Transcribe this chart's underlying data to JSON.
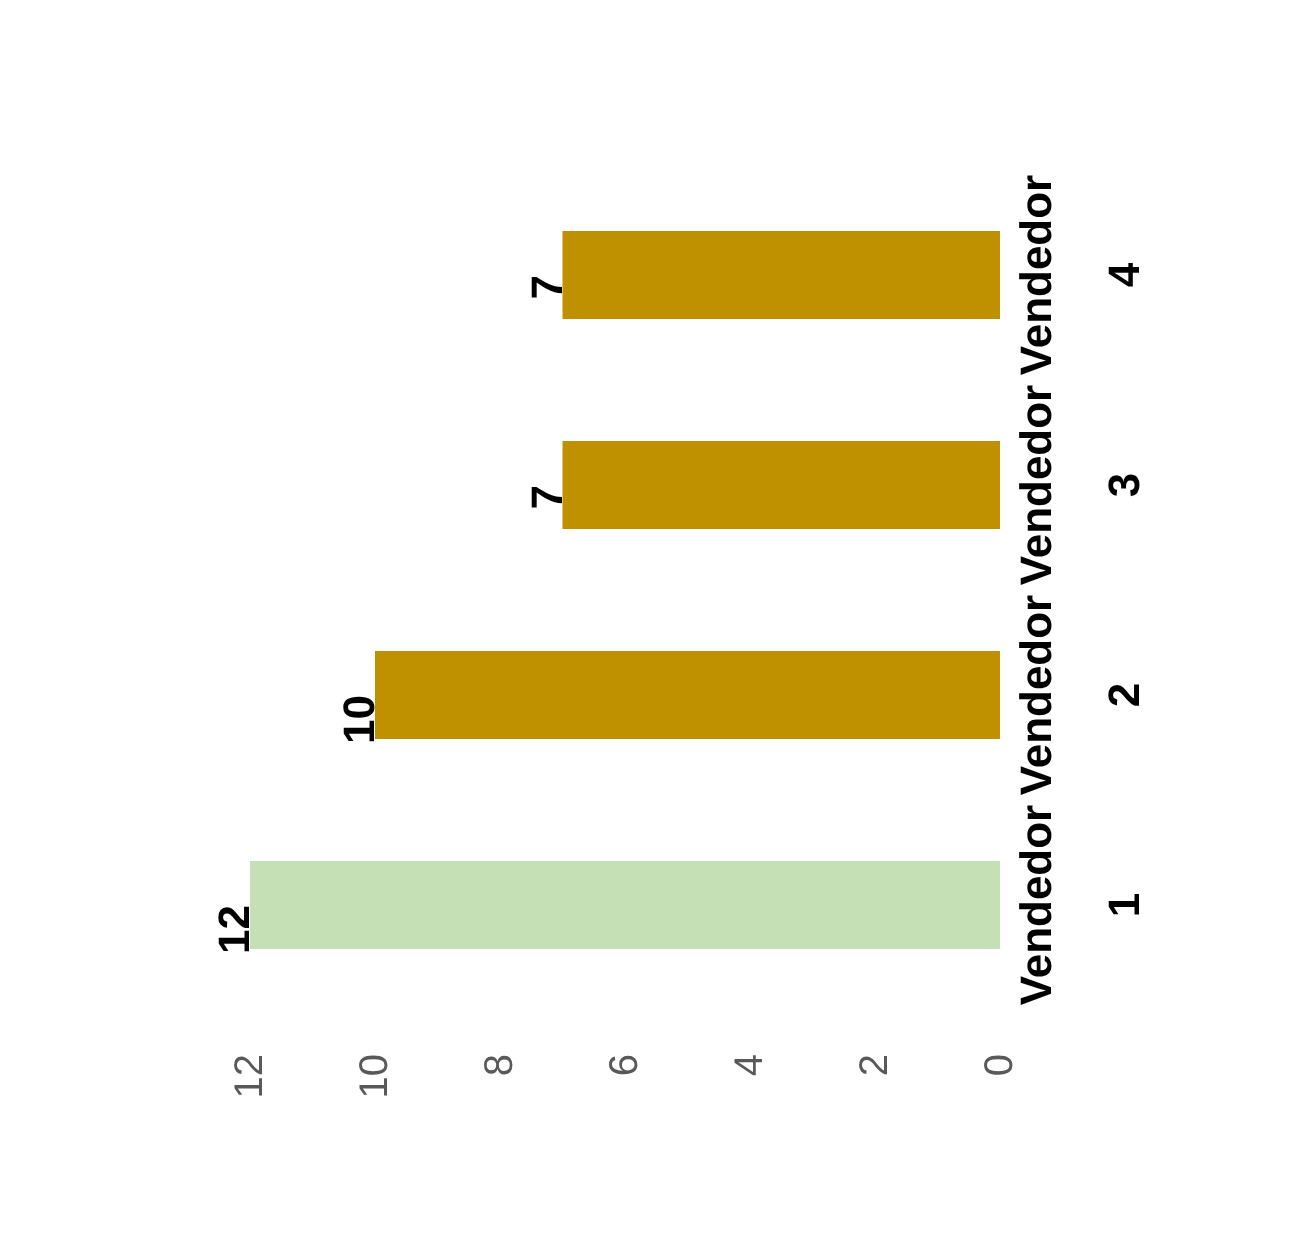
{
  "chart_data": {
    "type": "bar",
    "orientation": "horizontal",
    "categories": [
      "Vendedor 4",
      "Vendedor 3",
      "Vendedor 2",
      "Vendedor 1"
    ],
    "values": [
      7,
      7,
      10,
      12
    ],
    "colors": [
      "#bf9000",
      "#bf9000",
      "#bf9000",
      "#c5e0b4"
    ],
    "xlim": [
      12,
      0
    ],
    "xticks": [
      12,
      10,
      8,
      6,
      4,
      2,
      0
    ],
    "data_labels": true
  }
}
